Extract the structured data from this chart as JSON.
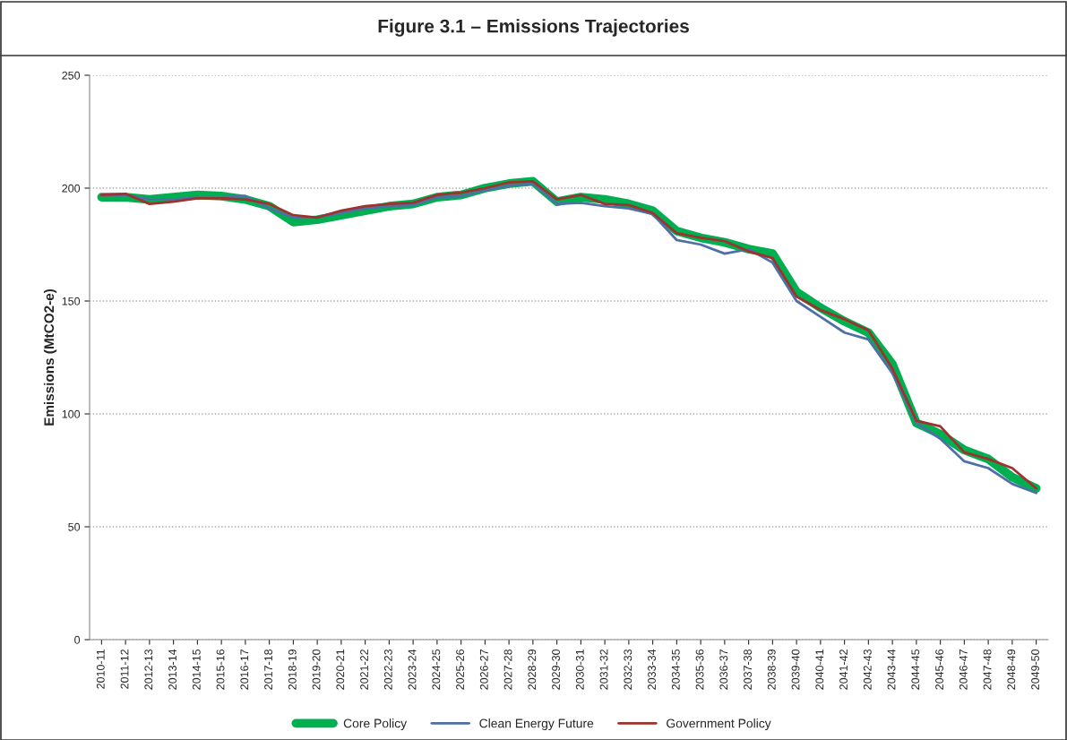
{
  "chart_data": {
    "type": "line",
    "title": "Figure 3.1 – Emissions Trajectories",
    "ylabel": "Emissions (MtCO2-e)",
    "categories": [
      "2010-11",
      "2011-12",
      "2012-13",
      "2013-14",
      "2014-15",
      "2015-16",
      "2016-17",
      "2017-18",
      "2018-19",
      "2019-20",
      "2020-21",
      "2021-22",
      "2022-23",
      "2023-24",
      "2024-25",
      "2025-26",
      "2026-27",
      "2027-28",
      "2028-29",
      "2029-30",
      "2030-31",
      "2031-32",
      "2032-33",
      "2033-34",
      "2034-35",
      "2035-36",
      "2036-37",
      "2037-38",
      "2038-39",
      "2039-40",
      "2040-41",
      "2041-42",
      "2042-43",
      "2043-44",
      "2044-45",
      "2045-46",
      "2046-47",
      "2047-48",
      "2048-49",
      "2049-50"
    ],
    "series": [
      {
        "name": "Core Policy",
        "color": "#00b050",
        "values": [
          196,
          196,
          195,
          196,
          197,
          196.5,
          195,
          192,
          185,
          186,
          188,
          190,
          192,
          193,
          196,
          197,
          200,
          202,
          203,
          194,
          196,
          195,
          193,
          190,
          181,
          178,
          176,
          173,
          171,
          154,
          147,
          141,
          136,
          122,
          96,
          91,
          84,
          80,
          72,
          67
        ]
      },
      {
        "name": "Clean Energy Future",
        "color": "#4f6fa8",
        "values": [
          197,
          197,
          195,
          195,
          196,
          196,
          196.5,
          191,
          187,
          187,
          189,
          191,
          192,
          192.5,
          196,
          196.5,
          199,
          201,
          202,
          193,
          193.5,
          192,
          191,
          188.5,
          177,
          175,
          171,
          173,
          167,
          150,
          143,
          136,
          133,
          118,
          96,
          89,
          79,
          76,
          69,
          65
        ]
      },
      {
        "name": "Government Policy",
        "color": "#a0322d",
        "values": [
          197,
          197.5,
          193,
          194,
          195.5,
          195.5,
          195,
          193,
          188,
          187,
          190,
          192,
          193,
          193.5,
          197,
          198,
          200,
          202.5,
          203,
          195,
          197,
          193,
          192.5,
          189,
          180,
          178,
          176.5,
          172,
          169,
          152,
          146,
          142,
          137,
          120,
          97,
          94.5,
          83,
          80,
          76,
          67
        ]
      }
    ],
    "ylim": [
      0,
      250
    ],
    "yticks": [
      0,
      50,
      100,
      150,
      200,
      250
    ],
    "grid": "y",
    "legend": "bottom",
    "marker": "none",
    "line_style": "solid"
  }
}
